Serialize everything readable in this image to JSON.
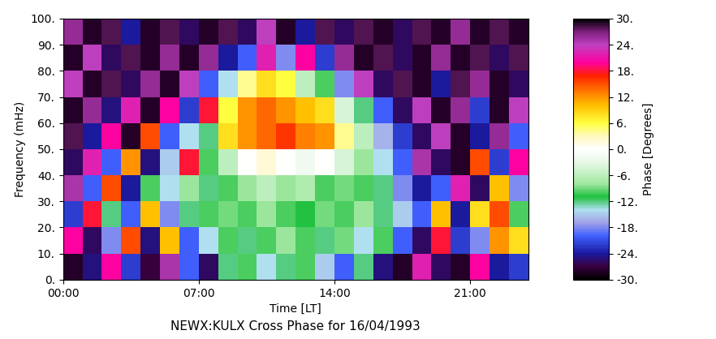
{
  "chart_data": {
    "type": "heatmap",
    "title": "NEWX:KULX Cross Phase for 16/04/1993",
    "x_label": "Time [LT]",
    "y_label": "Frequency (mHz)",
    "x": [
      0,
      1,
      2,
      3,
      4,
      5,
      6,
      7,
      8,
      9,
      10,
      11,
      12,
      13,
      14,
      15,
      16,
      17,
      18,
      19,
      20,
      21,
      22,
      23,
      24
    ],
    "y": [
      0,
      10,
      20,
      30,
      40,
      50,
      60,
      70,
      80,
      90,
      100
    ],
    "xlim": [
      0,
      24
    ],
    "ylim": [
      0,
      100
    ],
    "xticks": [
      {
        "value": 0,
        "label": "00:00"
      },
      {
        "value": 7,
        "label": "07:00"
      },
      {
        "value": 14,
        "label": "14:00"
      },
      {
        "value": 21,
        "label": "21:00"
      }
    ],
    "yticks": [
      {
        "value": 0,
        "label": "0."
      },
      {
        "value": 10,
        "label": "10."
      },
      {
        "value": 20,
        "label": "20."
      },
      {
        "value": 30,
        "label": "30."
      },
      {
        "value": 40,
        "label": "40."
      },
      {
        "value": 50,
        "label": "50."
      },
      {
        "value": 60,
        "label": "60."
      },
      {
        "value": 70,
        "label": "70."
      },
      {
        "value": 80,
        "label": "80."
      },
      {
        "value": 90,
        "label": "90."
      },
      {
        "value": 100,
        "label": "100."
      }
    ],
    "cells": [
      [
        -28,
        -25,
        20,
        -22,
        -27,
        25,
        -20,
        -26,
        -12,
        -10,
        -14,
        -12,
        -10,
        -15,
        -20,
        -12,
        -25,
        -28,
        22,
        -26,
        -28,
        20,
        -24,
        -22
      ],
      [
        20,
        -26,
        -18,
        15,
        -25,
        10,
        -20,
        -14,
        -10,
        -12,
        -10,
        -8,
        -10,
        -12,
        -9,
        -14,
        -10,
        -20,
        -26,
        18,
        -22,
        -18,
        12,
        8
      ],
      [
        -22,
        18,
        -12,
        -20,
        10,
        -18,
        -12,
        -10,
        -9,
        -10,
        -8,
        -10,
        -11,
        -9,
        -10,
        -8,
        -12,
        -15,
        -20,
        10,
        -24,
        8,
        15,
        -10
      ],
      [
        25,
        -20,
        15,
        -24,
        -10,
        -14,
        -8,
        -12,
        -10,
        -8,
        -6,
        -8,
        -7,
        -10,
        -9,
        -10,
        -12,
        -18,
        -24,
        -20,
        22,
        -26,
        10,
        -18
      ],
      [
        -26,
        22,
        -20,
        12,
        -25,
        -15,
        18,
        -10,
        -6,
        0,
        2,
        0,
        -2,
        0,
        -4,
        -8,
        -14,
        -20,
        25,
        -26,
        -28,
        15,
        -22,
        20
      ],
      [
        28,
        -24,
        20,
        -28,
        15,
        -20,
        -14,
        -12,
        8,
        12,
        14,
        16,
        13,
        12,
        4,
        -6,
        -16,
        -22,
        -26,
        24,
        -28,
        -24,
        26,
        -20
      ],
      [
        -28,
        26,
        -25,
        22,
        -28,
        20,
        -22,
        18,
        6,
        12,
        14,
        12,
        10,
        8,
        -4,
        -12,
        -20,
        -26,
        24,
        -28,
        26,
        -22,
        -28,
        24
      ],
      [
        24,
        -28,
        28,
        -26,
        26,
        -28,
        24,
        -20,
        -14,
        4,
        8,
        6,
        -6,
        -10,
        -18,
        24,
        -26,
        28,
        -28,
        -24,
        28,
        26,
        -28,
        -26
      ],
      [
        -28,
        24,
        -26,
        28,
        -28,
        26,
        -28,
        26,
        -24,
        -20,
        22,
        -18,
        20,
        -22,
        26,
        -28,
        28,
        -26,
        -28,
        26,
        -28,
        28,
        -26,
        28
      ],
      [
        26,
        -28,
        28,
        -24,
        -28,
        28,
        -26,
        -28,
        28,
        -26,
        24,
        -28,
        -24,
        28,
        -26,
        28,
        -28,
        -26,
        28,
        -28,
        26,
        -28,
        28,
        -28
      ]
    ],
    "colorbar": {
      "label": "Phase [Degrees]",
      "range": [
        -30,
        30
      ],
      "ticks": [
        {
          "value": 30,
          "label": "30."
        },
        {
          "value": 24,
          "label": "24."
        },
        {
          "value": 18,
          "label": "18."
        },
        {
          "value": 12,
          "label": "12."
        },
        {
          "value": 6,
          "label": "6."
        },
        {
          "value": 0,
          "label": "0."
        },
        {
          "value": -6,
          "label": "-6."
        },
        {
          "value": -12,
          "label": "-12."
        },
        {
          "value": -18,
          "label": "-18."
        },
        {
          "value": -24,
          "label": "-24."
        },
        {
          "value": -30,
          "label": "-30."
        }
      ]
    }
  }
}
